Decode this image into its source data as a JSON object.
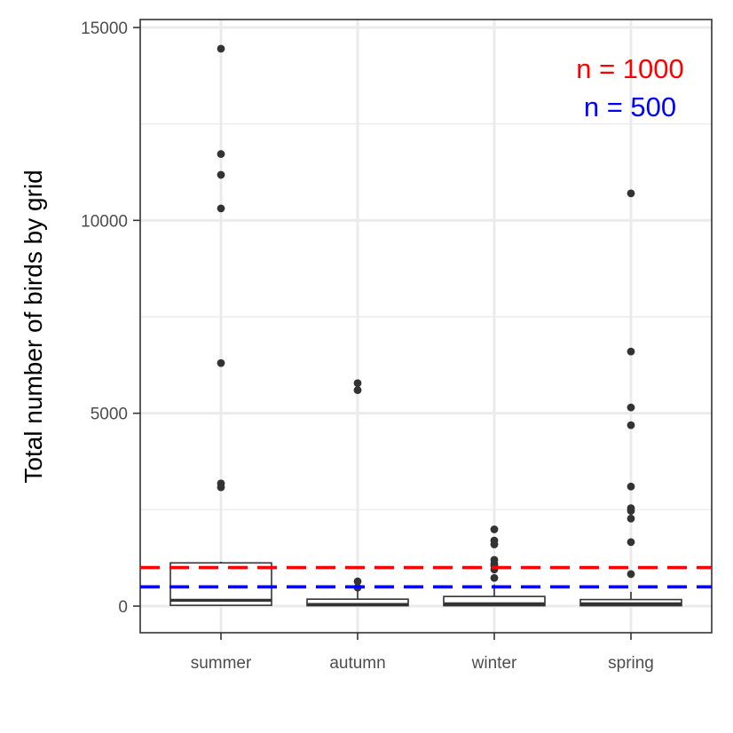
{
  "chart_data": {
    "type": "box",
    "ylabel": "Total number of birds by grid",
    "xlabel": "",
    "ylim": [
      -700,
      15200
    ],
    "y_ticks": [
      0,
      5000,
      10000,
      15000
    ],
    "y_tick_labels": [
      "0",
      "5000",
      "10000",
      "15000"
    ],
    "grid": true,
    "categories": [
      "summer",
      "autumn",
      "winter",
      "spring"
    ],
    "boxes": [
      {
        "category": "summer",
        "q1": 20,
        "median": 150,
        "q3": 1120,
        "whisker_low": 0,
        "whisker_high": 1150,
        "outliers": [
          14450,
          11720,
          11180,
          10310,
          6300,
          3180,
          3080
        ]
      },
      {
        "category": "autumn",
        "q1": 10,
        "median": 40,
        "q3": 180,
        "whisker_low": 0,
        "whisker_high": 390,
        "outliers": [
          5780,
          5600,
          640,
          480
        ]
      },
      {
        "category": "winter",
        "q1": 10,
        "median": 60,
        "q3": 250,
        "whisker_low": 0,
        "whisker_high": 560,
        "outliers": [
          1990,
          1700,
          1600,
          1200,
          1100,
          1050,
          950,
          730
        ]
      },
      {
        "category": "spring",
        "q1": 10,
        "median": 60,
        "q3": 170,
        "whisker_low": 0,
        "whisker_high": 370,
        "outliers": [
          10700,
          6600,
          5150,
          4690,
          3100,
          2540,
          2470,
          2270,
          1660,
          830
        ]
      }
    ],
    "reference_lines": [
      {
        "y": 1000,
        "color": "#ff0000",
        "style": "dashed"
      },
      {
        "y": 500,
        "color": "#0000ff",
        "style": "dashed"
      }
    ],
    "annotations": [
      {
        "text": "n = 1000",
        "color": "#ff0000"
      },
      {
        "text": "n = 500",
        "color": "#0000ff"
      }
    ]
  }
}
